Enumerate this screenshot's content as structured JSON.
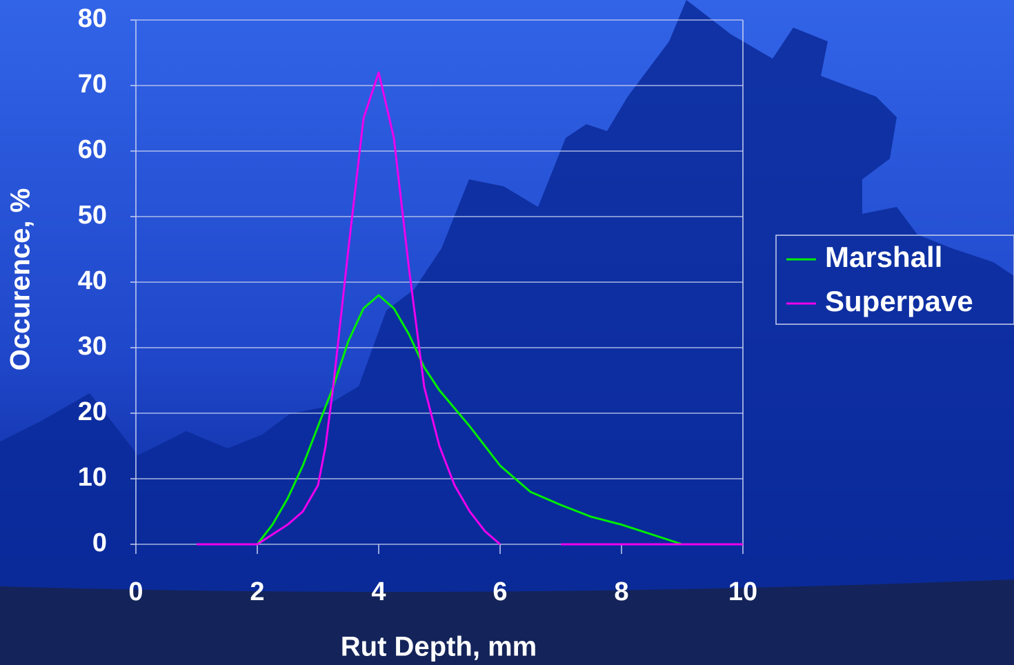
{
  "chart_data": {
    "type": "line",
    "x_label": "Rut Depth, mm",
    "y_label": "Occurence, %",
    "xlim": [
      0,
      10
    ],
    "xticks": [
      0,
      2,
      4,
      6,
      8,
      10
    ],
    "ylim": [
      0,
      80
    ],
    "yticks": [
      0,
      10,
      20,
      30,
      40,
      50,
      60,
      70,
      80
    ],
    "grid": true,
    "legend": "right",
    "series": [
      {
        "name": "Marshall",
        "color": "#00ee00",
        "x": [
          2,
          2.25,
          2.5,
          2.75,
          3,
          3.25,
          3.5,
          3.75,
          4,
          4.25,
          4.5,
          4.75,
          5,
          5.5,
          6,
          6.5,
          7,
          7.5,
          8,
          8.5,
          9,
          9.5,
          10
        ],
        "values": [
          0,
          3,
          7,
          12,
          18,
          24,
          31,
          36,
          38,
          36,
          32,
          27,
          23.5,
          18,
          12,
          8,
          6,
          4.2,
          3,
          1.5,
          0,
          0,
          0
        ]
      },
      {
        "name": "Superpave",
        "color": "#ee00ee",
        "x": [
          1,
          2,
          2.25,
          2.5,
          2.75,
          3,
          3.125,
          3.25,
          3.5,
          3.75,
          4,
          4.25,
          4.5,
          4.75,
          5,
          5.25,
          5.5,
          5.75,
          6,
          6.5,
          7,
          7.5,
          8,
          8.5,
          9,
          9.5,
          10
        ],
        "values": [
          0,
          0,
          1.5,
          3,
          5,
          9,
          15,
          24,
          45,
          65,
          72,
          62,
          42,
          24,
          15,
          9,
          5,
          2,
          0,
          null,
          0,
          0,
          0,
          0,
          0,
          0,
          0
        ]
      }
    ]
  }
}
